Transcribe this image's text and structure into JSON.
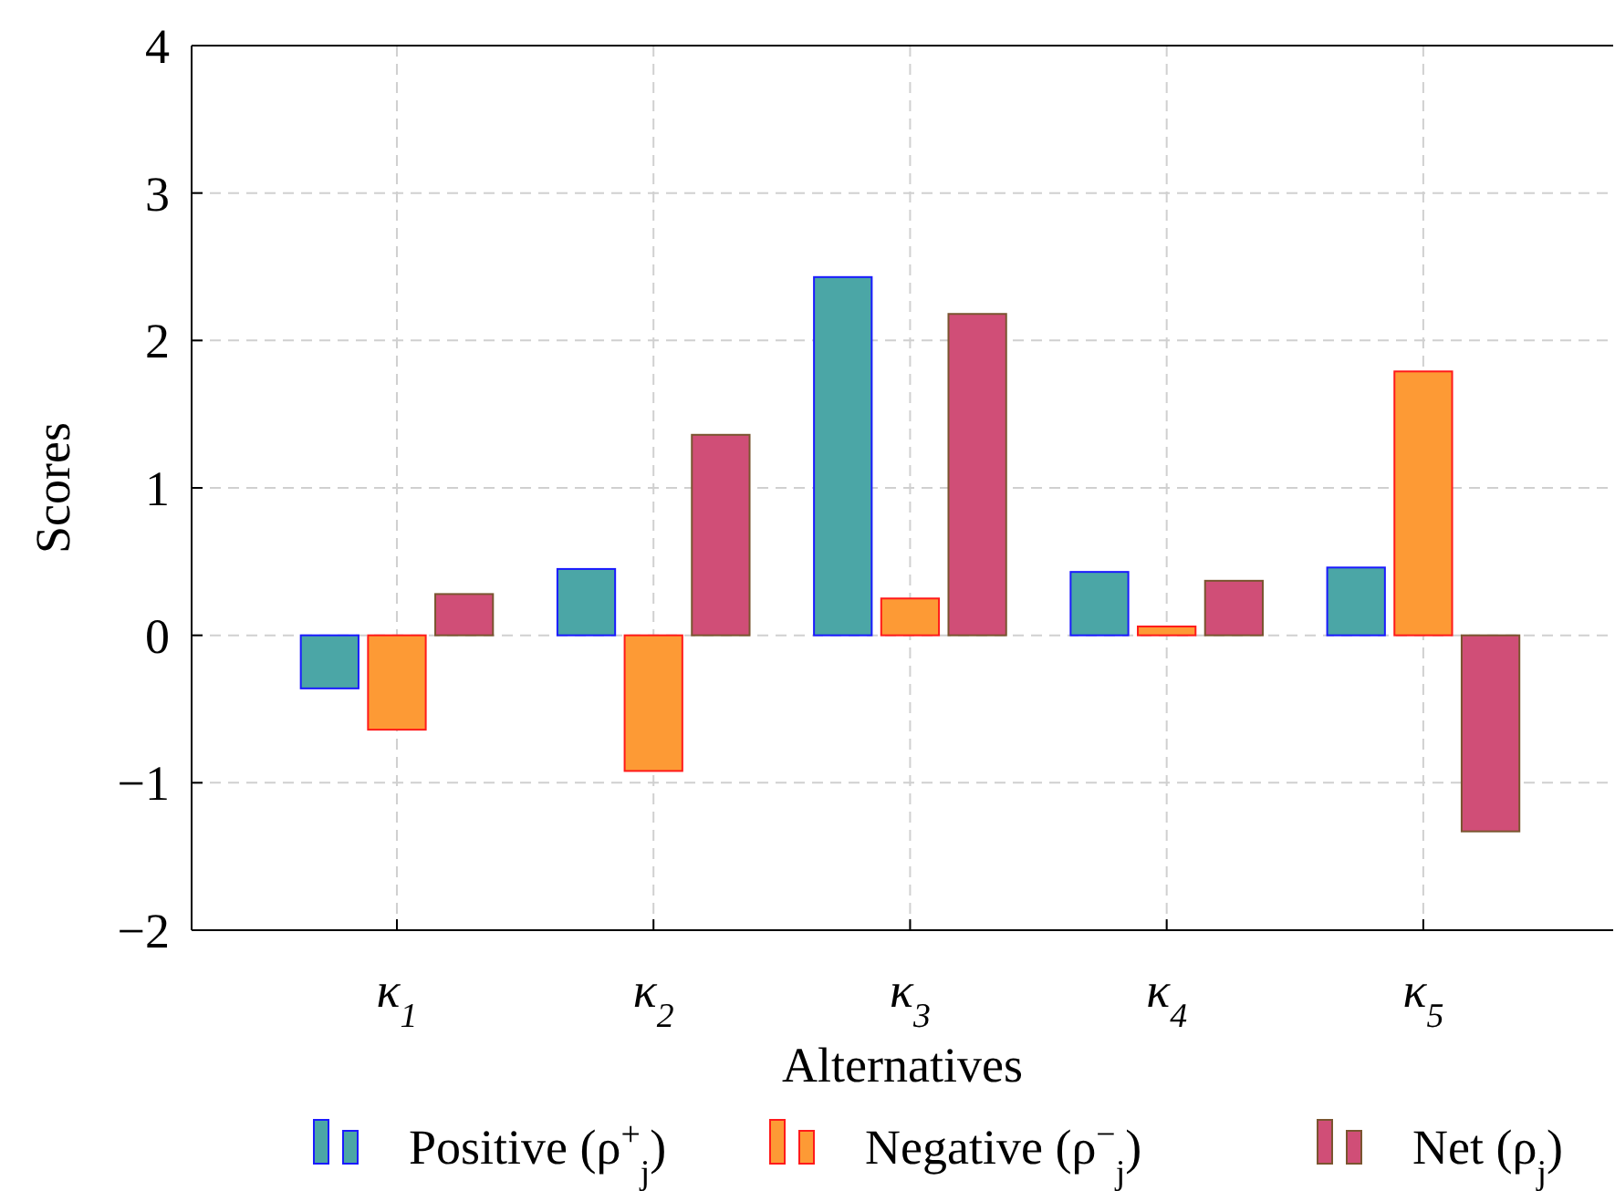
{
  "chart_data": {
    "type": "bar",
    "xlabel": "Alternatives",
    "ylabel": "Scores",
    "categories": [
      "κ$_{1}$",
      "κ$_{2}$",
      "κ$_{3}$",
      "κ$_{4}$",
      "κ$_{5}$"
    ],
    "series": [
      {
        "name": "Positive (ρ$^{+}$$_{j}$)",
        "color": "#4ba6a6",
        "values": [
          -0.36,
          0.45,
          2.43,
          0.43,
          0.46
        ]
      },
      {
        "name": "Negative (ρ$^{−}$$_{j}$)",
        "color": "#fd9a35",
        "values": [
          -0.64,
          -0.92,
          0.25,
          0.06,
          1.79
        ]
      },
      {
        "name": "Net (ρ$_{j}$)",
        "color": "#d04e77",
        "values": [
          0.28,
          1.36,
          2.18,
          0.37,
          -1.33
        ]
      }
    ],
    "ylim": [
      -2,
      4
    ],
    "yticks": [
      -2,
      -1,
      0,
      1,
      2,
      3,
      4
    ],
    "grid": true,
    "legend": "bottom"
  }
}
